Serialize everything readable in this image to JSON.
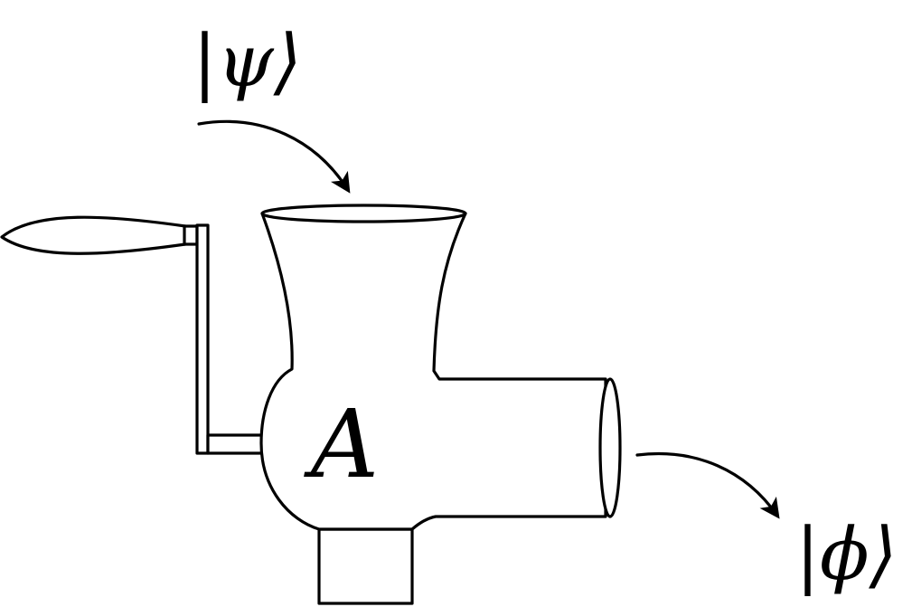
{
  "labels": {
    "input_state": "|ψ⟩",
    "output_state": "|ϕ⟩",
    "operator": "A"
  },
  "colors": {
    "ink": "#000000",
    "background": "#ffffff"
  }
}
